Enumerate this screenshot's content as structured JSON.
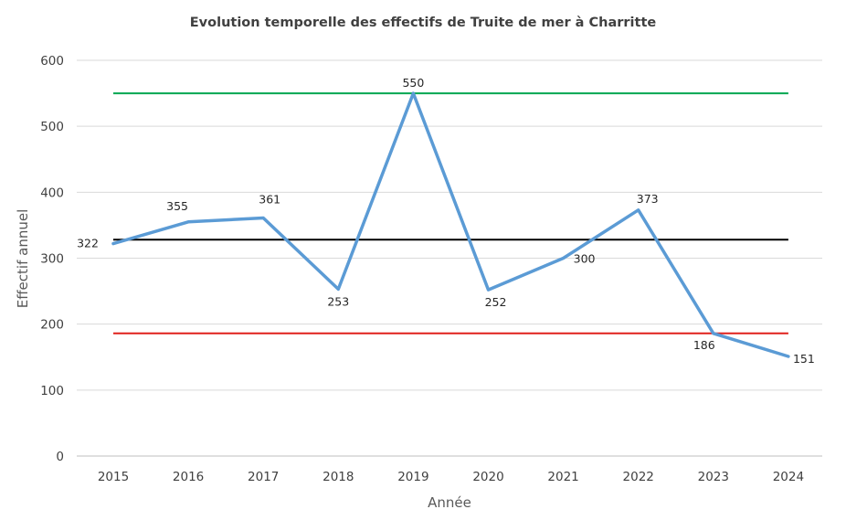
{
  "chart_data": {
    "type": "line",
    "title": "Evolution temporelle des effectifs de Truite de mer à Charritte",
    "xlabel": "Année",
    "ylabel": "Effectif annuel",
    "x": [
      "2015",
      "2016",
      "2017",
      "2018",
      "2019",
      "2020",
      "2021",
      "2022",
      "2023",
      "2024"
    ],
    "series": [
      {
        "values": [
          322,
          355,
          361,
          253,
          550,
          252,
          300,
          373,
          186,
          151
        ],
        "color": "#5B9BD5",
        "data_labels": true
      }
    ],
    "reference_lines": [
      {
        "value": 550,
        "color": "#00A651"
      },
      {
        "value": 328,
        "color": "#000000"
      },
      {
        "value": 186,
        "color": "#E0201B"
      }
    ],
    "ylim": [
      0,
      600
    ],
    "yticks": [
      0,
      100,
      200,
      300,
      400,
      500,
      600
    ],
    "grid": true,
    "legend": "none"
  }
}
